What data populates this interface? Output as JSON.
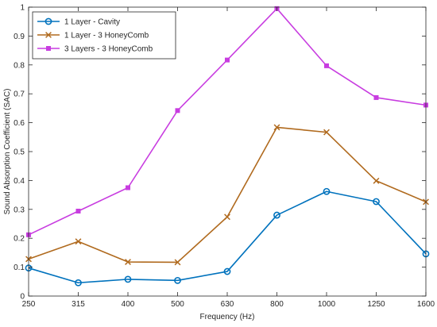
{
  "chart_data": {
    "type": "line",
    "title": "",
    "xlabel": "Frequency (Hz)",
    "ylabel": "Sound Absorption Coefficient (SAC)",
    "categories": [
      "250",
      "315",
      "400",
      "500",
      "630",
      "800",
      "1000",
      "1250",
      "1600"
    ],
    "ylim": [
      0,
      1
    ],
    "yticks": [
      "0",
      "0.1",
      "0.2",
      "0.3",
      "0.4",
      "0.5",
      "0.6",
      "0.7",
      "0.8",
      "0.9",
      "1"
    ],
    "grid": false,
    "legend_position": "top-left",
    "series": [
      {
        "name": "1 Layer - Cavity",
        "color": "#0072BD",
        "marker": "circle",
        "values": [
          0.097,
          0.046,
          0.058,
          0.054,
          0.085,
          0.28,
          0.362,
          0.327,
          0.146
        ]
      },
      {
        "name": "1 Layer - 3 HoneyComb",
        "color": "#B06A1E",
        "marker": "x",
        "values": [
          0.128,
          0.189,
          0.118,
          0.117,
          0.274,
          0.584,
          0.567,
          0.399,
          0.326
        ]
      },
      {
        "name": "3 Layers - 3 HoneyComb",
        "color": "#C83DE0",
        "marker": "square",
        "values": [
          0.212,
          0.294,
          0.375,
          0.642,
          0.817,
          0.995,
          0.797,
          0.687,
          0.661
        ]
      }
    ]
  }
}
